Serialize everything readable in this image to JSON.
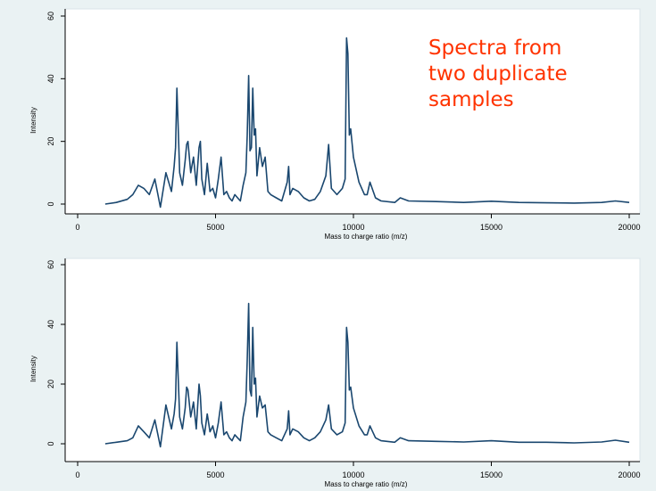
{
  "annotation": {
    "lines": [
      "Spectra from",
      "two duplicate",
      "samples"
    ],
    "color": "#ff3300"
  },
  "line_color": "#1a476f",
  "chart_data": [
    {
      "type": "line",
      "title": "",
      "xlabel": "Mass to charge ratio (m/z)",
      "ylabel": "Intensity",
      "xlim": [
        0,
        20000
      ],
      "ylim": [
        -2,
        62
      ],
      "xticks": [
        0,
        5000,
        10000,
        15000,
        20000
      ],
      "yticks": [
        0,
        20,
        40,
        60
      ],
      "grid": false,
      "series": [
        {
          "x": [
            1000,
            1400,
            1800,
            2000,
            2200,
            2400,
            2600,
            2800,
            3000,
            3200,
            3400,
            3500,
            3550,
            3600,
            3700,
            3800,
            3900,
            3950,
            4000,
            4100,
            4200,
            4300,
            4400,
            4450,
            4500,
            4600,
            4700,
            4800,
            4900,
            5000,
            5100,
            5200,
            5300,
            5400,
            5500,
            5600,
            5700,
            5800,
            5900,
            6000,
            6100,
            6150,
            6200,
            6250,
            6300,
            6350,
            6400,
            6450,
            6500,
            6600,
            6700,
            6800,
            6900,
            7000,
            7200,
            7400,
            7600,
            7650,
            7700,
            7800,
            8000,
            8200,
            8400,
            8600,
            8800,
            9000,
            9100,
            9200,
            9400,
            9600,
            9700,
            9750,
            9800,
            9850,
            9900,
            10000,
            10200,
            10400,
            10500,
            10600,
            10800,
            11000,
            11500,
            11700,
            12000,
            13000,
            14000,
            15000,
            16000,
            17000,
            18000,
            19000,
            19500,
            20000
          ],
          "values": [
            0,
            0.5,
            1.5,
            3,
            6,
            5,
            3,
            8,
            -1,
            10,
            4,
            12,
            18,
            37,
            10,
            6,
            14,
            19,
            20,
            10,
            15,
            6,
            18,
            20,
            8,
            3,
            13,
            4,
            5,
            2,
            8,
            15,
            3,
            4,
            2,
            1,
            3,
            2,
            1,
            6,
            10,
            22,
            41,
            17,
            18,
            37,
            22,
            24,
            9,
            18,
            12,
            15,
            4,
            3,
            2,
            1,
            7,
            12,
            3,
            5,
            4,
            2,
            1,
            1.5,
            4,
            9,
            19,
            5,
            3,
            5,
            8,
            53,
            48,
            22,
            24,
            15,
            7,
            3,
            3,
            7,
            2,
            1,
            0.5,
            2,
            1,
            0.8,
            0.5,
            0.9,
            0.5,
            0.4,
            0.3,
            0.5,
            1,
            0.5
          ]
        }
      ]
    },
    {
      "type": "line",
      "title": "",
      "xlabel": "Mass to charge ratio (m/z)",
      "ylabel": "Intensity",
      "xlim": [
        0,
        20000
      ],
      "ylim": [
        -2,
        62
      ],
      "xticks": [
        0,
        5000,
        10000,
        15000,
        20000
      ],
      "yticks": [
        0,
        20,
        40,
        60
      ],
      "grid": false,
      "series": [
        {
          "x": [
            1000,
            1400,
            1800,
            2000,
            2200,
            2400,
            2600,
            2800,
            3000,
            3200,
            3400,
            3500,
            3550,
            3600,
            3700,
            3800,
            3900,
            3950,
            4000,
            4100,
            4200,
            4300,
            4400,
            4450,
            4500,
            4600,
            4700,
            4800,
            4900,
            5000,
            5100,
            5200,
            5300,
            5400,
            5500,
            5600,
            5700,
            5800,
            5900,
            6000,
            6100,
            6150,
            6200,
            6250,
            6300,
            6350,
            6400,
            6450,
            6500,
            6600,
            6700,
            6800,
            6900,
            7000,
            7200,
            7400,
            7600,
            7650,
            7700,
            7800,
            8000,
            8200,
            8400,
            8600,
            8800,
            9000,
            9100,
            9200,
            9400,
            9600,
            9700,
            9750,
            9800,
            9850,
            9900,
            10000,
            10200,
            10400,
            10500,
            10600,
            10800,
            11000,
            11500,
            11700,
            12000,
            13000,
            14000,
            15000,
            16000,
            17000,
            18000,
            19000,
            19500,
            20000
          ],
          "values": [
            0,
            0.5,
            1,
            2,
            6,
            4,
            2,
            8,
            -1,
            13,
            5,
            10,
            15,
            34,
            9,
            5,
            12,
            19,
            18,
            9,
            14,
            5,
            20,
            16,
            7,
            3,
            10,
            4,
            6,
            2,
            7,
            14,
            3,
            4,
            2,
            1,
            3,
            2,
            1,
            9,
            14,
            28,
            47,
            18,
            16,
            39,
            20,
            22,
            9,
            16,
            12,
            13,
            4,
            3,
            2,
            1,
            5,
            11,
            3,
            5,
            4,
            2,
            1,
            2,
            4,
            8,
            13,
            5,
            3,
            4,
            7,
            39,
            34,
            18,
            19,
            12,
            6,
            3,
            3,
            6,
            2,
            1,
            0.5,
            2,
            1,
            0.8,
            0.6,
            1,
            0.5,
            0.5,
            0.3,
            0.6,
            1.2,
            0.5
          ]
        }
      ]
    }
  ]
}
